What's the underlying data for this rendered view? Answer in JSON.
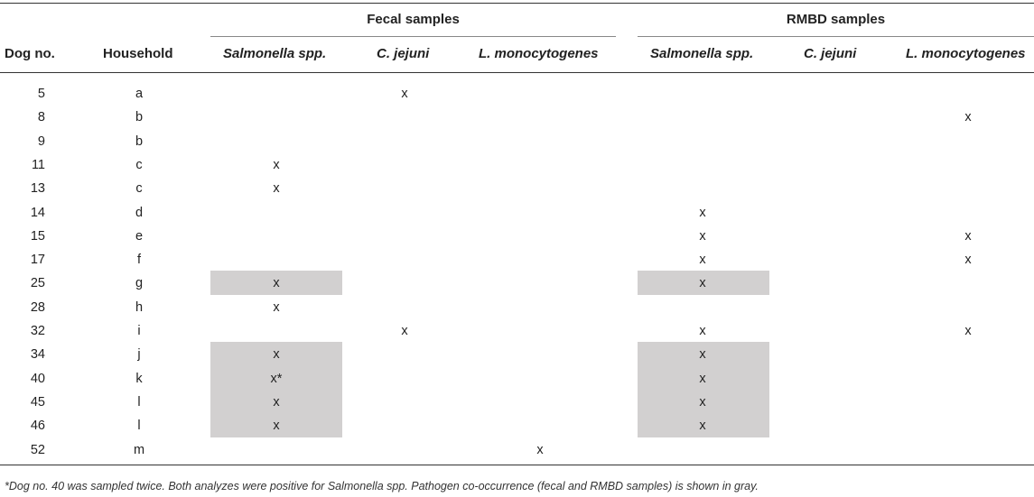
{
  "table": {
    "group_headers": {
      "fecal": "Fecal samples",
      "rmbd": "RMBD samples"
    },
    "columns": [
      "Dog no.",
      "Household",
      "Salmonella spp.",
      "C. jejuni",
      "L. monocytogenes",
      "Salmonella spp.",
      "C. jejuni",
      "L. monocytogenes"
    ],
    "rows": [
      {
        "dog": "5",
        "household": "a",
        "fecal_salmonella": "",
        "fecal_cjejuni": "x",
        "fecal_listeria": "",
        "rmbd_salmonella": "",
        "rmbd_cjejuni": "",
        "rmbd_listeria": "",
        "co_occurrence": false
      },
      {
        "dog": "8",
        "household": "b",
        "fecal_salmonella": "",
        "fecal_cjejuni": "",
        "fecal_listeria": "",
        "rmbd_salmonella": "",
        "rmbd_cjejuni": "",
        "rmbd_listeria": "x",
        "co_occurrence": false
      },
      {
        "dog": "9",
        "household": "b",
        "fecal_salmonella": "",
        "fecal_cjejuni": "",
        "fecal_listeria": "",
        "rmbd_salmonella": "",
        "rmbd_cjejuni": "",
        "rmbd_listeria": "",
        "co_occurrence": false
      },
      {
        "dog": "11",
        "household": "c",
        "fecal_salmonella": "x",
        "fecal_cjejuni": "",
        "fecal_listeria": "",
        "rmbd_salmonella": "",
        "rmbd_cjejuni": "",
        "rmbd_listeria": "",
        "co_occurrence": false
      },
      {
        "dog": "13",
        "household": "c",
        "fecal_salmonella": "x",
        "fecal_cjejuni": "",
        "fecal_listeria": "",
        "rmbd_salmonella": "",
        "rmbd_cjejuni": "",
        "rmbd_listeria": "",
        "co_occurrence": false
      },
      {
        "dog": "14",
        "household": "d",
        "fecal_salmonella": "",
        "fecal_cjejuni": "",
        "fecal_listeria": "",
        "rmbd_salmonella": "x",
        "rmbd_cjejuni": "",
        "rmbd_listeria": "",
        "co_occurrence": false
      },
      {
        "dog": "15",
        "household": "e",
        "fecal_salmonella": "",
        "fecal_cjejuni": "",
        "fecal_listeria": "",
        "rmbd_salmonella": "x",
        "rmbd_cjejuni": "",
        "rmbd_listeria": "x",
        "co_occurrence": false
      },
      {
        "dog": "17",
        "household": "f",
        "fecal_salmonella": "",
        "fecal_cjejuni": "",
        "fecal_listeria": "",
        "rmbd_salmonella": "x",
        "rmbd_cjejuni": "",
        "rmbd_listeria": "x",
        "co_occurrence": false
      },
      {
        "dog": "25",
        "household": "g",
        "fecal_salmonella": "x",
        "fecal_cjejuni": "",
        "fecal_listeria": "",
        "rmbd_salmonella": "x",
        "rmbd_cjejuni": "",
        "rmbd_listeria": "",
        "co_occurrence": true
      },
      {
        "dog": "28",
        "household": "h",
        "fecal_salmonella": "x",
        "fecal_cjejuni": "",
        "fecal_listeria": "",
        "rmbd_salmonella": "",
        "rmbd_cjejuni": "",
        "rmbd_listeria": "",
        "co_occurrence": false
      },
      {
        "dog": "32",
        "household": "i",
        "fecal_salmonella": "",
        "fecal_cjejuni": "x",
        "fecal_listeria": "",
        "rmbd_salmonella": "x",
        "rmbd_cjejuni": "",
        "rmbd_listeria": "x",
        "co_occurrence": false
      },
      {
        "dog": "34",
        "household": "j",
        "fecal_salmonella": "x",
        "fecal_cjejuni": "",
        "fecal_listeria": "",
        "rmbd_salmonella": "x",
        "rmbd_cjejuni": "",
        "rmbd_listeria": "",
        "co_occurrence": true
      },
      {
        "dog": "40",
        "household": "k",
        "fecal_salmonella": "x*",
        "fecal_cjejuni": "",
        "fecal_listeria": "",
        "rmbd_salmonella": "x",
        "rmbd_cjejuni": "",
        "rmbd_listeria": "",
        "co_occurrence": true
      },
      {
        "dog": "45",
        "household": "l",
        "fecal_salmonella": "x",
        "fecal_cjejuni": "",
        "fecal_listeria": "",
        "rmbd_salmonella": "x",
        "rmbd_cjejuni": "",
        "rmbd_listeria": "",
        "co_occurrence": true
      },
      {
        "dog": "46",
        "household": "l",
        "fecal_salmonella": "x",
        "fecal_cjejuni": "",
        "fecal_listeria": "",
        "rmbd_salmonella": "x",
        "rmbd_cjejuni": "",
        "rmbd_listeria": "",
        "co_occurrence": true
      },
      {
        "dog": "52",
        "household": "m",
        "fecal_salmonella": "",
        "fecal_cjejuni": "",
        "fecal_listeria": "x",
        "rmbd_salmonella": "",
        "rmbd_cjejuni": "",
        "rmbd_listeria": "",
        "co_occurrence": false
      }
    ],
    "footnote": "*Dog no. 40 was sampled twice. Both analyzes were positive for Salmonella spp. Pathogen co-occurrence (fecal and RMBD samples) is shown in gray.",
    "colors": {
      "shade": "#d2d0d0",
      "text": "#222222"
    }
  }
}
